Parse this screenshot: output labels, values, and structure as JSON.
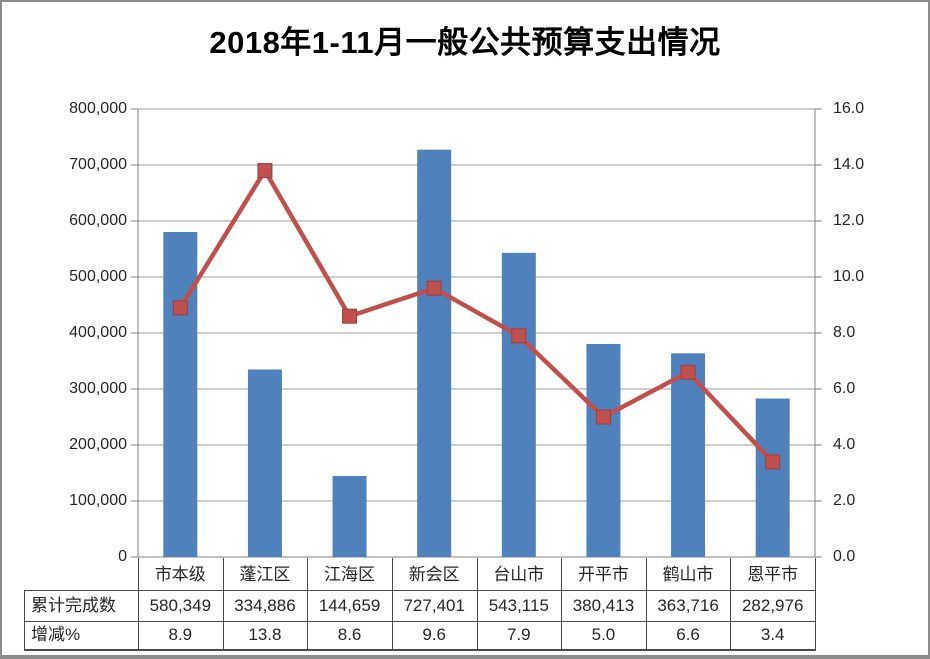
{
  "chart_data": {
    "type": "bar+line",
    "title": "2018年1-11月一般公共预算支出情况",
    "categories": [
      "市本级",
      "蓬江区",
      "江海区",
      "新会区",
      "台山市",
      "开平市",
      "鹤山市",
      "恩平市"
    ],
    "series": [
      {
        "name": "累计完成数",
        "chart": "bar",
        "axis": "left",
        "values": [
          580349,
          334886,
          144659,
          727401,
          543115,
          380413,
          363716,
          282976
        ],
        "labels": [
          "580,349",
          "334,886",
          "144,659",
          "727,401",
          "543,115",
          "380,413",
          "363,716",
          "282,976"
        ],
        "color": "#4F81BD"
      },
      {
        "name": "增减%",
        "chart": "line",
        "axis": "right",
        "marker": "square",
        "values": [
          8.9,
          13.8,
          8.6,
          9.6,
          7.9,
          5.0,
          6.6,
          3.4
        ],
        "labels": [
          "8.9",
          "13.8",
          "8.6",
          "9.6",
          "7.9",
          "5.0",
          "6.6",
          "3.4"
        ],
        "color": "#C0504D"
      }
    ],
    "left_axis": {
      "min": 0,
      "max": 800000,
      "step": 100000,
      "tick_labels": [
        "0",
        "100,000",
        "200,000",
        "300,000",
        "400,000",
        "500,000",
        "600,000",
        "700,000",
        "800,000"
      ]
    },
    "right_axis": {
      "min": 0,
      "max": 16,
      "step": 2,
      "tick_labels": [
        "0.0",
        "2.0",
        "4.0",
        "6.0",
        "8.0",
        "10.0",
        "12.0",
        "14.0",
        "16.0"
      ]
    },
    "grid": "horizontal",
    "legend_position": "none",
    "data_table_shown": true
  },
  "colors": {
    "bar": "#4F81BD",
    "line": "#C0504D",
    "marker_border": "#9E3D3B",
    "grid": "#9C9C9C",
    "axis": "#808080",
    "frame": "#8C8C8C",
    "table_border": "#4A4A4A",
    "text": "#262626"
  }
}
